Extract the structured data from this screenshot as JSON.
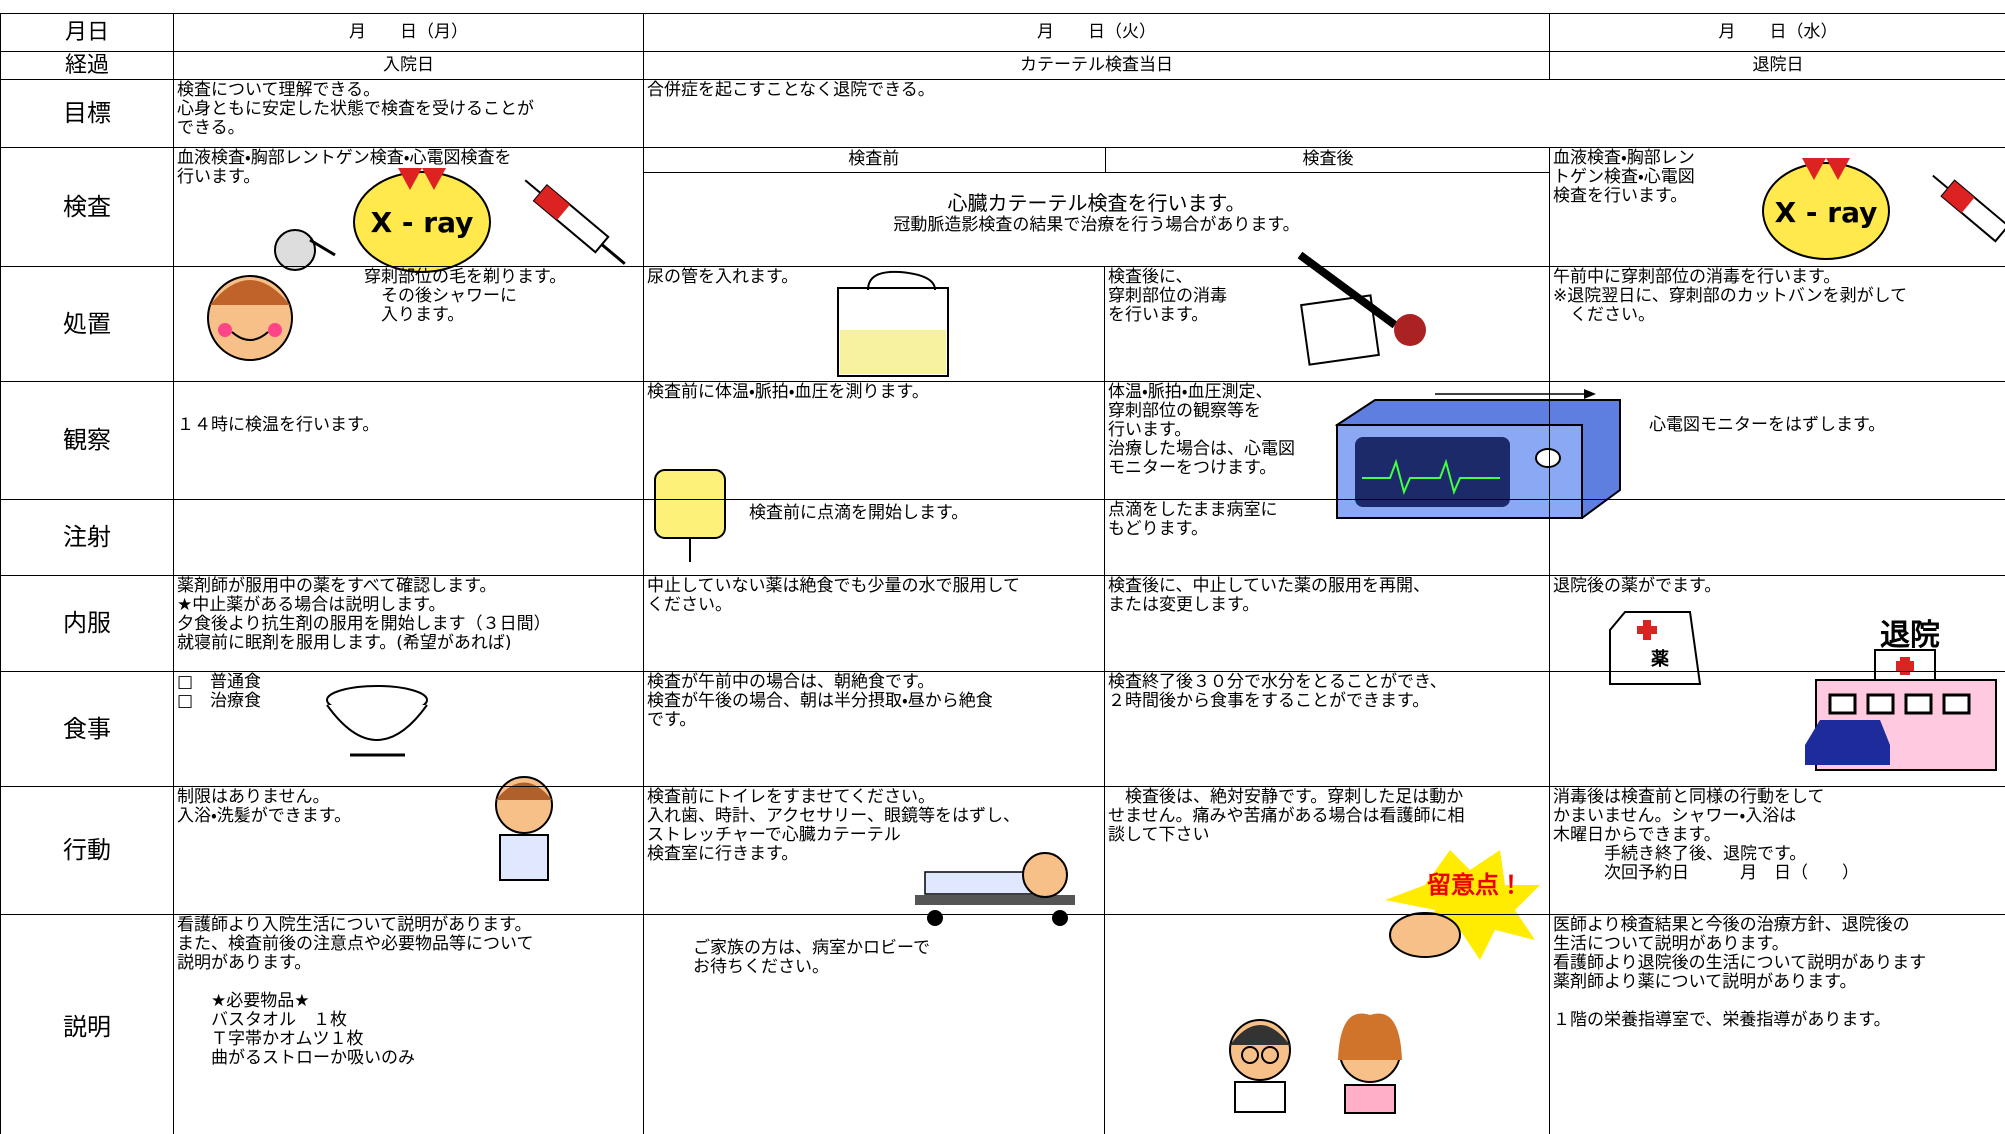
{
  "header": {
    "label": "月日",
    "mon": "月　　日（月）",
    "tue": "月　　日（火）",
    "wed": "月　　日（水）"
  },
  "progress": {
    "label": "経過",
    "mon": "入院日",
    "tue": "カテーテル検査当日",
    "wed": "退院日"
  },
  "goal": {
    "label": "目標",
    "mon": "検査について理解できる。\n心身ともに安定した状態で検査を受けることが\nできる。",
    "tue_wed": "合併症を起こすことなく退院できる。"
  },
  "tests": {
    "label": "検査",
    "mon": "血液検査・胸部レントゲン検査・心電図検査を\n行います。",
    "tue_pre_heading": "検査前",
    "tue_post_heading": "検査後",
    "tue_main": "心臓カテーテル検査を行います。",
    "tue_note": "冠動脈造影検査の結果で治療を行う場合があります。",
    "wed": "血液検査・胸部レン\nトゲン検査・心電図\n検査を行います。"
  },
  "procedure": {
    "label": "処置",
    "mon": "穿刺部位の毛を剃ります。\n　その後シャワーに\n　入ります。",
    "tue_pre": "尿の管を入れます。",
    "tue_post": "検査後に、\n穿刺部位の消毒\nを行います。",
    "wed": "午前中に穿刺部位の消毒を行います。\n※退院翌日に、穿刺部のカットバンを剥がして\n　ください。"
  },
  "observation": {
    "label": "観察",
    "mon": "１４時に検温を行います。",
    "tue_pre": "検査前に体温・脈拍・血圧を測ります。",
    "tue_post": "体温・脈拍・血圧測定、\n穿刺部位の観察等を\n行います。\n治療した場合は、心電図\nモニターをつけます。",
    "wed": "心電図モニターをはずします。"
  },
  "injection": {
    "label": "注射",
    "tue_pre": "検査前に点滴を開始します。",
    "tue_post": "点滴をしたまま病室に\nもどります。"
  },
  "medication": {
    "label": "内服",
    "mon": "薬剤師が服用中の薬をすべて確認します。\n★中止薬がある場合は説明します。\n夕食後より抗生剤の服用を開始します（３日間）\n就寝前に眠剤を服用します。(希望があれば)",
    "tue_pre": "中止していない薬は絶食でも少量の水で服用して\nください。",
    "tue_post": "検査後に、中止していた薬の服用を再開、\nまたは変更します。",
    "wed": "退院後の薬がでます。"
  },
  "meal": {
    "label": "食事",
    "mon": "□　普通食\n□　治療食",
    "tue_pre": "検査が午前中の場合は、朝絶食です。\n検査が午後の場合、朝は半分摂取・昼から絶食\nです。",
    "tue_post": "検査終了後３０分で水分をとることができ、\n２時間後から食事をすることができます。"
  },
  "activity": {
    "label": "行動",
    "mon": "制限はありません。\n入浴・洗髪ができます。",
    "tue_pre": "検査前にトイレをすませてください。\n入れ歯、時計、アクセサリー、眼鏡等をはずし、\nストレッチャーで心臓カテーテル\n検査室に行きます。",
    "tue_post": "　検査後は、絶対安静です。穿刺した足は動か\nせません。痛みや苦痛がある場合は看護師に相\n談して下さい",
    "wed": "消毒後は検査前と同様の行動をして\nかまいません。シャワー・入浴は\n木曜日からできます。\n　　　手続き終了後、退院です。\n　　　次回予約日　　　月　日（　　）"
  },
  "explanation": {
    "label": "説明",
    "mon": "看護師より入院生活について説明があります。\nまた、検査前後の注意点や必要物品等について\n説明があります。\n\n　　★必要物品★\n　　バスタオル　１枚\n　　Ｔ字帯かオムツ１枚\n　　曲がるストローか吸いのみ",
    "tue_pre": "ご家族の方は、病室かロビーで\nお待ちください。",
    "wed": "医師より検査結果と今後の治療方針、退院後の\n生活について説明があります。\n看護師より退院後の生活について説明があります\n薬剤師より薬について説明があります。\n\n１階の栄養指導室で、栄養指導があります。"
  },
  "icons": {
    "xray_mon": "X - ray",
    "xray_wed": "X - ray",
    "medicine": "薬",
    "discharge": "退院",
    "caution": "留意点！"
  }
}
